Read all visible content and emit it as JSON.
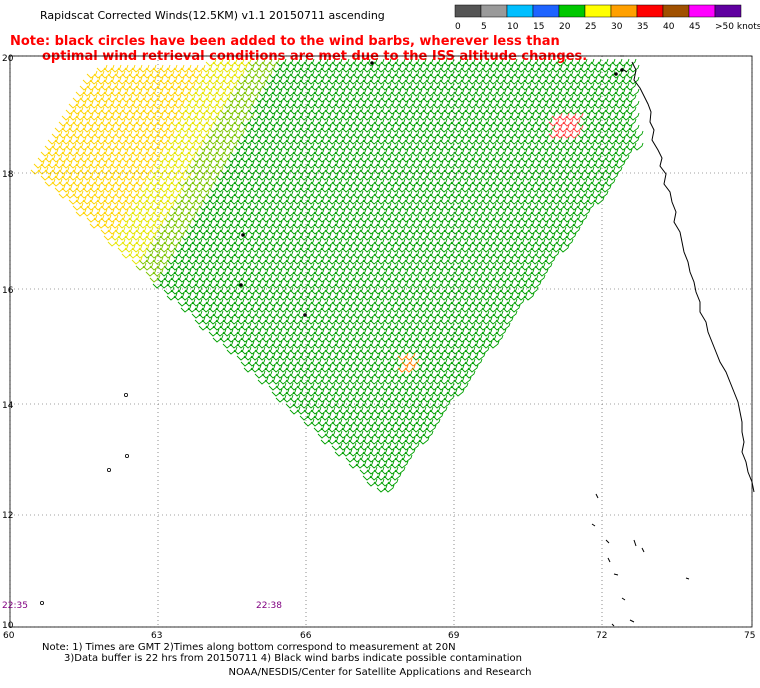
{
  "title": "Rapidscat Corrected Winds(12.5KM) v1.1 20150711 ascending",
  "note_line1": "Note: black circles have been added to the wind barbs, wherever less than",
  "note_line2": "optimal wind retrieval conditions are met due to the ISS altitude changes.",
  "legend": {
    "labels": [
      "0",
      "5",
      "10",
      "15",
      "20",
      "25",
      "30",
      "35",
      "40",
      "45",
      ">50 knots"
    ],
    "colors": [
      "#555555",
      "#9a9a9a",
      "#00bfff",
      "#1e64ff",
      "#00c800",
      "#ffff00",
      "#ffa000",
      "#ff0000",
      "#a05000",
      "#ff00ff",
      "#6000a0"
    ]
  },
  "map": {
    "lat_labels": [
      "20",
      "18",
      "16",
      "14",
      "12",
      "10"
    ],
    "lon_labels": [
      "60",
      "63",
      "66",
      "69",
      "72",
      "75"
    ],
    "time_labels": [
      "22:35",
      "22:38"
    ]
  },
  "footer": {
    "line1": "Note: 1) Times are GMT 2)Times along bottom correspond to measurement at 20N",
    "line2": "3)Data buffer is 22 hrs from 20150711 4) Black wind barbs indicate possible contamination",
    "line3": "NOAA/NESDIS/Center for Satellite Applications and Research"
  }
}
